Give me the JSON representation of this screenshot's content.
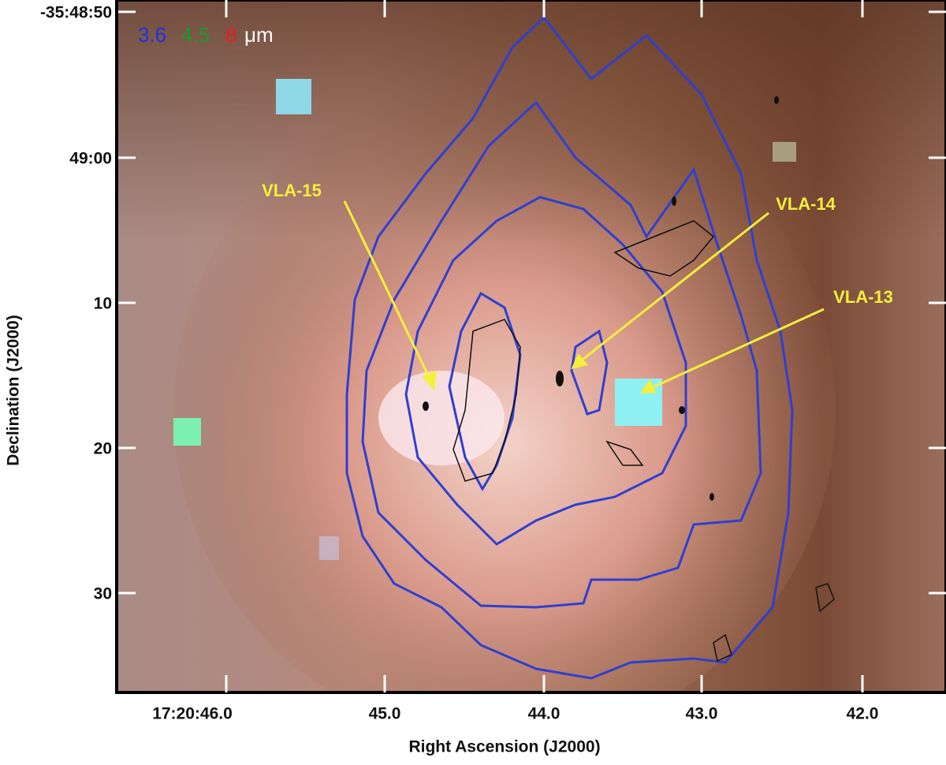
{
  "figure": {
    "legend": {
      "bands": [
        "3.6",
        "4.5",
        "8"
      ],
      "unit": "μm"
    },
    "x_axis": {
      "label": "Right Ascension (J2000)",
      "ticks": [
        "17:20:46.0",
        "45.0",
        "44.0",
        "43.0",
        "42.0"
      ]
    },
    "y_axis": {
      "label": "Declination (J2000)",
      "ticks": [
        "-35:48:50",
        "49:00",
        "10",
        "20",
        "30"
      ]
    },
    "annotations": [
      "VLA-15",
      "VLA-14",
      "VLA-13"
    ]
  }
}
